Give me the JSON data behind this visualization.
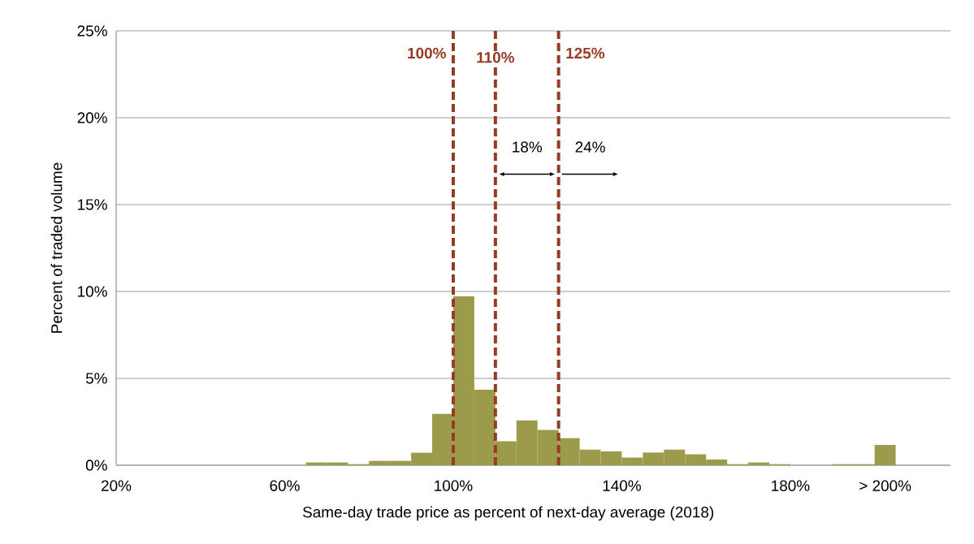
{
  "chart_data": {
    "type": "histogram",
    "xlabel": "Same-day trade price as percent of next-day average (2018)",
    "ylabel": "Percent of traded volume",
    "bins": [
      65,
      70,
      75,
      80,
      85,
      90,
      95,
      100,
      105,
      110,
      115,
      120,
      125,
      130,
      135,
      140,
      145,
      150,
      155,
      160,
      165,
      170,
      175,
      180,
      185,
      190,
      195,
      200,
      205
    ],
    "values": [
      0.16,
      0.16,
      0.06,
      0.25,
      0.25,
      0.72,
      2.95,
      9.72,
      4.35,
      1.38,
      2.58,
      2.03,
      1.56,
      0.9,
      0.8,
      0.44,
      0.73,
      0.9,
      0.63,
      0.33,
      0.06,
      0.16,
      0.06,
      0,
      0,
      0.06,
      0.06,
      1.17
    ],
    "color": "#9c9b4b",
    "xlim": [
      20,
      218
    ],
    "xticks": [
      {
        "value": 20,
        "label": "20%"
      },
      {
        "value": 60,
        "label": "60%"
      },
      {
        "value": 100,
        "label": "100%"
      },
      {
        "value": 140,
        "label": "140%"
      },
      {
        "value": 180,
        "label": "180%"
      },
      {
        "value": 202.5,
        "label": "> 200%"
      }
    ],
    "ylim": [
      0,
      25
    ],
    "yticks": [
      {
        "value": 0,
        "label": "0%"
      },
      {
        "value": 5,
        "label": "5%"
      },
      {
        "value": 10,
        "label": "10%"
      },
      {
        "value": 15,
        "label": "15%"
      },
      {
        "value": 20,
        "label": "20%"
      },
      {
        "value": 25,
        "label": "25%"
      }
    ],
    "grid": "y",
    "ref_lines": [
      {
        "axis": "x",
        "value": 100,
        "label": "100%",
        "color": "#963b26",
        "line_style": "dashed"
      },
      {
        "axis": "x",
        "value": 110,
        "label": "110%",
        "color": "#963b26",
        "line_style": "dashed"
      },
      {
        "axis": "x",
        "value": 125,
        "label": "125%",
        "color": "#963b26",
        "line_style": "dashed"
      }
    ],
    "annotations": [
      "18%",
      "24%"
    ]
  }
}
